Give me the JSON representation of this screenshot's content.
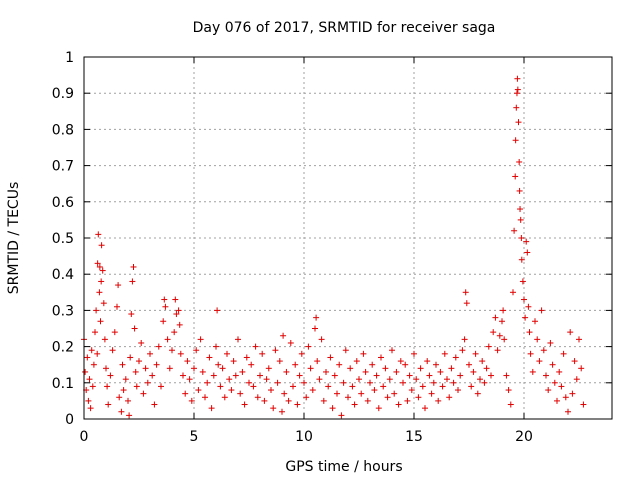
{
  "chart_data": {
    "type": "scatter",
    "title": "Day 076 of 2017, SRMTID for receiver saga",
    "xlabel": "GPS time / hours",
    "ylabel": "SRMTID / TECUs",
    "xlim": [
      0,
      24
    ],
    "ylim": [
      0,
      1
    ],
    "xticks": [
      0,
      5,
      10,
      15,
      20
    ],
    "xtick_labels": [
      "0",
      "5",
      "10",
      "15",
      "20"
    ],
    "yticks": [
      0,
      0.1,
      0.2,
      0.3,
      0.4,
      0.5,
      0.6,
      0.7,
      0.8,
      0.9,
      1
    ],
    "ytick_labels": [
      "0",
      "0.1",
      "0.2",
      "0.3",
      "0.4",
      "0.5",
      "0.6",
      "0.7",
      "0.8",
      "0.9",
      "1"
    ],
    "grid": true,
    "marker": "+",
    "color": "#e00000",
    "series": [
      {
        "name": "SRMTID",
        "points": [
          [
            0.0,
            0.22
          ],
          [
            0.05,
            0.13
          ],
          [
            0.1,
            0.08
          ],
          [
            0.15,
            0.17
          ],
          [
            0.2,
            0.05
          ],
          [
            0.25,
            0.11
          ],
          [
            0.3,
            0.03
          ],
          [
            0.35,
            0.19
          ],
          [
            0.4,
            0.09
          ],
          [
            0.45,
            0.15
          ],
          [
            0.5,
            0.24
          ],
          [
            0.55,
            0.3
          ],
          [
            0.6,
            0.18
          ],
          [
            0.62,
            0.43
          ],
          [
            0.65,
            0.51
          ],
          [
            0.7,
            0.35
          ],
          [
            0.72,
            0.42
          ],
          [
            0.75,
            0.27
          ],
          [
            0.78,
            0.38
          ],
          [
            0.8,
            0.48
          ],
          [
            0.85,
            0.41
          ],
          [
            0.9,
            0.32
          ],
          [
            0.95,
            0.22
          ],
          [
            1.0,
            0.14
          ],
          [
            1.05,
            0.09
          ],
          [
            1.1,
            0.04
          ],
          [
            1.2,
            0.12
          ],
          [
            1.3,
            0.19
          ],
          [
            1.4,
            0.24
          ],
          [
            1.5,
            0.31
          ],
          [
            1.55,
            0.37
          ],
          [
            1.6,
            0.06
          ],
          [
            1.7,
            0.02
          ],
          [
            1.75,
            0.15
          ],
          [
            1.8,
            0.08
          ],
          [
            1.9,
            0.11
          ],
          [
            2.0,
            0.05
          ],
          [
            2.05,
            0.01
          ],
          [
            2.1,
            0.17
          ],
          [
            2.15,
            0.29
          ],
          [
            2.2,
            0.38
          ],
          [
            2.25,
            0.42
          ],
          [
            2.3,
            0.25
          ],
          [
            2.35,
            0.13
          ],
          [
            2.4,
            0.09
          ],
          [
            2.5,
            0.16
          ],
          [
            2.6,
            0.21
          ],
          [
            2.7,
            0.07
          ],
          [
            2.8,
            0.14
          ],
          [
            2.9,
            0.1
          ],
          [
            3.0,
            0.18
          ],
          [
            3.1,
            0.12
          ],
          [
            3.2,
            0.04
          ],
          [
            3.3,
            0.15
          ],
          [
            3.4,
            0.2
          ],
          [
            3.5,
            0.09
          ],
          [
            3.6,
            0.27
          ],
          [
            3.65,
            0.33
          ],
          [
            3.7,
            0.31
          ],
          [
            3.8,
            0.22
          ],
          [
            3.9,
            0.14
          ],
          [
            4.0,
            0.19
          ],
          [
            4.1,
            0.24
          ],
          [
            4.15,
            0.33
          ],
          [
            4.2,
            0.29
          ],
          [
            4.3,
            0.3
          ],
          [
            4.35,
            0.26
          ],
          [
            4.4,
            0.18
          ],
          [
            4.5,
            0.12
          ],
          [
            4.6,
            0.07
          ],
          [
            4.7,
            0.16
          ],
          [
            4.8,
            0.11
          ],
          [
            4.9,
            0.05
          ],
          [
            5.0,
            0.14
          ],
          [
            5.1,
            0.19
          ],
          [
            5.2,
            0.08
          ],
          [
            5.3,
            0.22
          ],
          [
            5.4,
            0.13
          ],
          [
            5.5,
            0.06
          ],
          [
            5.6,
            0.1
          ],
          [
            5.7,
            0.17
          ],
          [
            5.8,
            0.03
          ],
          [
            5.9,
            0.12
          ],
          [
            6.0,
            0.2
          ],
          [
            6.05,
            0.3
          ],
          [
            6.1,
            0.15
          ],
          [
            6.2,
            0.09
          ],
          [
            6.3,
            0.14
          ],
          [
            6.4,
            0.06
          ],
          [
            6.5,
            0.18
          ],
          [
            6.6,
            0.11
          ],
          [
            6.7,
            0.08
          ],
          [
            6.8,
            0.16
          ],
          [
            6.9,
            0.12
          ],
          [
            7.0,
            0.22
          ],
          [
            7.1,
            0.07
          ],
          [
            7.2,
            0.13
          ],
          [
            7.3,
            0.04
          ],
          [
            7.4,
            0.17
          ],
          [
            7.5,
            0.1
          ],
          [
            7.6,
            0.15
          ],
          [
            7.7,
            0.09
          ],
          [
            7.8,
            0.2
          ],
          [
            7.9,
            0.06
          ],
          [
            8.0,
            0.12
          ],
          [
            8.1,
            0.18
          ],
          [
            8.2,
            0.05
          ],
          [
            8.3,
            0.11
          ],
          [
            8.4,
            0.14
          ],
          [
            8.5,
            0.08
          ],
          [
            8.6,
            0.03
          ],
          [
            8.7,
            0.19
          ],
          [
            8.8,
            0.1
          ],
          [
            8.9,
            0.16
          ],
          [
            9.0,
            0.02
          ],
          [
            9.05,
            0.23
          ],
          [
            9.1,
            0.07
          ],
          [
            9.2,
            0.13
          ],
          [
            9.3,
            0.05
          ],
          [
            9.4,
            0.21
          ],
          [
            9.5,
            0.09
          ],
          [
            9.6,
            0.15
          ],
          [
            9.7,
            0.04
          ],
          [
            9.8,
            0.12
          ],
          [
            9.9,
            0.18
          ],
          [
            10.0,
            0.1
          ],
          [
            10.1,
            0.06
          ],
          [
            10.2,
            0.2
          ],
          [
            10.3,
            0.14
          ],
          [
            10.4,
            0.08
          ],
          [
            10.5,
            0.25
          ],
          [
            10.55,
            0.28
          ],
          [
            10.6,
            0.16
          ],
          [
            10.7,
            0.11
          ],
          [
            10.8,
            0.22
          ],
          [
            10.9,
            0.05
          ],
          [
            11.0,
            0.13
          ],
          [
            11.1,
            0.09
          ],
          [
            11.2,
            0.17
          ],
          [
            11.3,
            0.03
          ],
          [
            11.4,
            0.12
          ],
          [
            11.5,
            0.07
          ],
          [
            11.6,
            0.15
          ],
          [
            11.7,
            0.01
          ],
          [
            11.8,
            0.1
          ],
          [
            11.9,
            0.19
          ],
          [
            12.0,
            0.06
          ],
          [
            12.1,
            0.14
          ],
          [
            12.2,
            0.09
          ],
          [
            12.3,
            0.04
          ],
          [
            12.4,
            0.16
          ],
          [
            12.5,
            0.11
          ],
          [
            12.6,
            0.07
          ],
          [
            12.7,
            0.18
          ],
          [
            12.8,
            0.13
          ],
          [
            12.9,
            0.05
          ],
          [
            13.0,
            0.1
          ],
          [
            13.1,
            0.15
          ],
          [
            13.2,
            0.08
          ],
          [
            13.3,
            0.12
          ],
          [
            13.4,
            0.03
          ],
          [
            13.5,
            0.17
          ],
          [
            13.6,
            0.09
          ],
          [
            13.7,
            0.14
          ],
          [
            13.8,
            0.06
          ],
          [
            13.9,
            0.11
          ],
          [
            14.0,
            0.19
          ],
          [
            14.1,
            0.07
          ],
          [
            14.2,
            0.13
          ],
          [
            14.3,
            0.04
          ],
          [
            14.4,
            0.16
          ],
          [
            14.5,
            0.1
          ],
          [
            14.6,
            0.15
          ],
          [
            14.7,
            0.05
          ],
          [
            14.8,
            0.12
          ],
          [
            14.9,
            0.08
          ],
          [
            15.0,
            0.18
          ],
          [
            15.1,
            0.11
          ],
          [
            15.2,
            0.06
          ],
          [
            15.3,
            0.14
          ],
          [
            15.4,
            0.09
          ],
          [
            15.5,
            0.03
          ],
          [
            15.6,
            0.16
          ],
          [
            15.7,
            0.12
          ],
          [
            15.8,
            0.07
          ],
          [
            15.9,
            0.1
          ],
          [
            16.0,
            0.15
          ],
          [
            16.1,
            0.05
          ],
          [
            16.2,
            0.13
          ],
          [
            16.3,
            0.09
          ],
          [
            16.4,
            0.18
          ],
          [
            16.5,
            0.11
          ],
          [
            16.6,
            0.06
          ],
          [
            16.7,
            0.14
          ],
          [
            16.8,
            0.1
          ],
          [
            16.9,
            0.17
          ],
          [
            17.0,
            0.08
          ],
          [
            17.1,
            0.12
          ],
          [
            17.2,
            0.19
          ],
          [
            17.3,
            0.22
          ],
          [
            17.35,
            0.35
          ],
          [
            17.4,
            0.32
          ],
          [
            17.5,
            0.15
          ],
          [
            17.6,
            0.09
          ],
          [
            17.7,
            0.13
          ],
          [
            17.8,
            0.18
          ],
          [
            17.9,
            0.07
          ],
          [
            18.0,
            0.11
          ],
          [
            18.1,
            0.16
          ],
          [
            18.2,
            0.1
          ],
          [
            18.3,
            0.14
          ],
          [
            18.4,
            0.2
          ],
          [
            18.5,
            0.12
          ],
          [
            18.6,
            0.24
          ],
          [
            18.7,
            0.28
          ],
          [
            18.8,
            0.19
          ],
          [
            18.9,
            0.23
          ],
          [
            19.0,
            0.27
          ],
          [
            19.05,
            0.3
          ],
          [
            19.1,
            0.22
          ],
          [
            19.2,
            0.12
          ],
          [
            19.3,
            0.08
          ],
          [
            19.4,
            0.04
          ],
          [
            19.5,
            0.35
          ],
          [
            19.55,
            0.52
          ],
          [
            19.6,
            0.67
          ],
          [
            19.62,
            0.77
          ],
          [
            19.65,
            0.86
          ],
          [
            19.68,
            0.9
          ],
          [
            19.7,
            0.94
          ],
          [
            19.72,
            0.91
          ],
          [
            19.75,
            0.82
          ],
          [
            19.78,
            0.71
          ],
          [
            19.8,
            0.63
          ],
          [
            19.82,
            0.58
          ],
          [
            19.85,
            0.55
          ],
          [
            19.88,
            0.5
          ],
          [
            19.9,
            0.44
          ],
          [
            19.95,
            0.38
          ],
          [
            20.0,
            0.33
          ],
          [
            20.05,
            0.28
          ],
          [
            20.1,
            0.49
          ],
          [
            20.15,
            0.46
          ],
          [
            20.2,
            0.31
          ],
          [
            20.25,
            0.24
          ],
          [
            20.3,
            0.18
          ],
          [
            20.4,
            0.13
          ],
          [
            20.5,
            0.27
          ],
          [
            20.6,
            0.22
          ],
          [
            20.7,
            0.16
          ],
          [
            20.8,
            0.3
          ],
          [
            20.9,
            0.19
          ],
          [
            21.0,
            0.12
          ],
          [
            21.1,
            0.08
          ],
          [
            21.2,
            0.21
          ],
          [
            21.3,
            0.15
          ],
          [
            21.4,
            0.1
          ],
          [
            21.5,
            0.05
          ],
          [
            21.6,
            0.13
          ],
          [
            21.7,
            0.09
          ],
          [
            21.8,
            0.18
          ],
          [
            21.9,
            0.06
          ],
          [
            22.0,
            0.02
          ],
          [
            22.1,
            0.24
          ],
          [
            22.2,
            0.07
          ],
          [
            22.3,
            0.16
          ],
          [
            22.4,
            0.11
          ],
          [
            22.5,
            0.22
          ],
          [
            22.6,
            0.14
          ],
          [
            22.7,
            0.04
          ]
        ]
      }
    ]
  }
}
